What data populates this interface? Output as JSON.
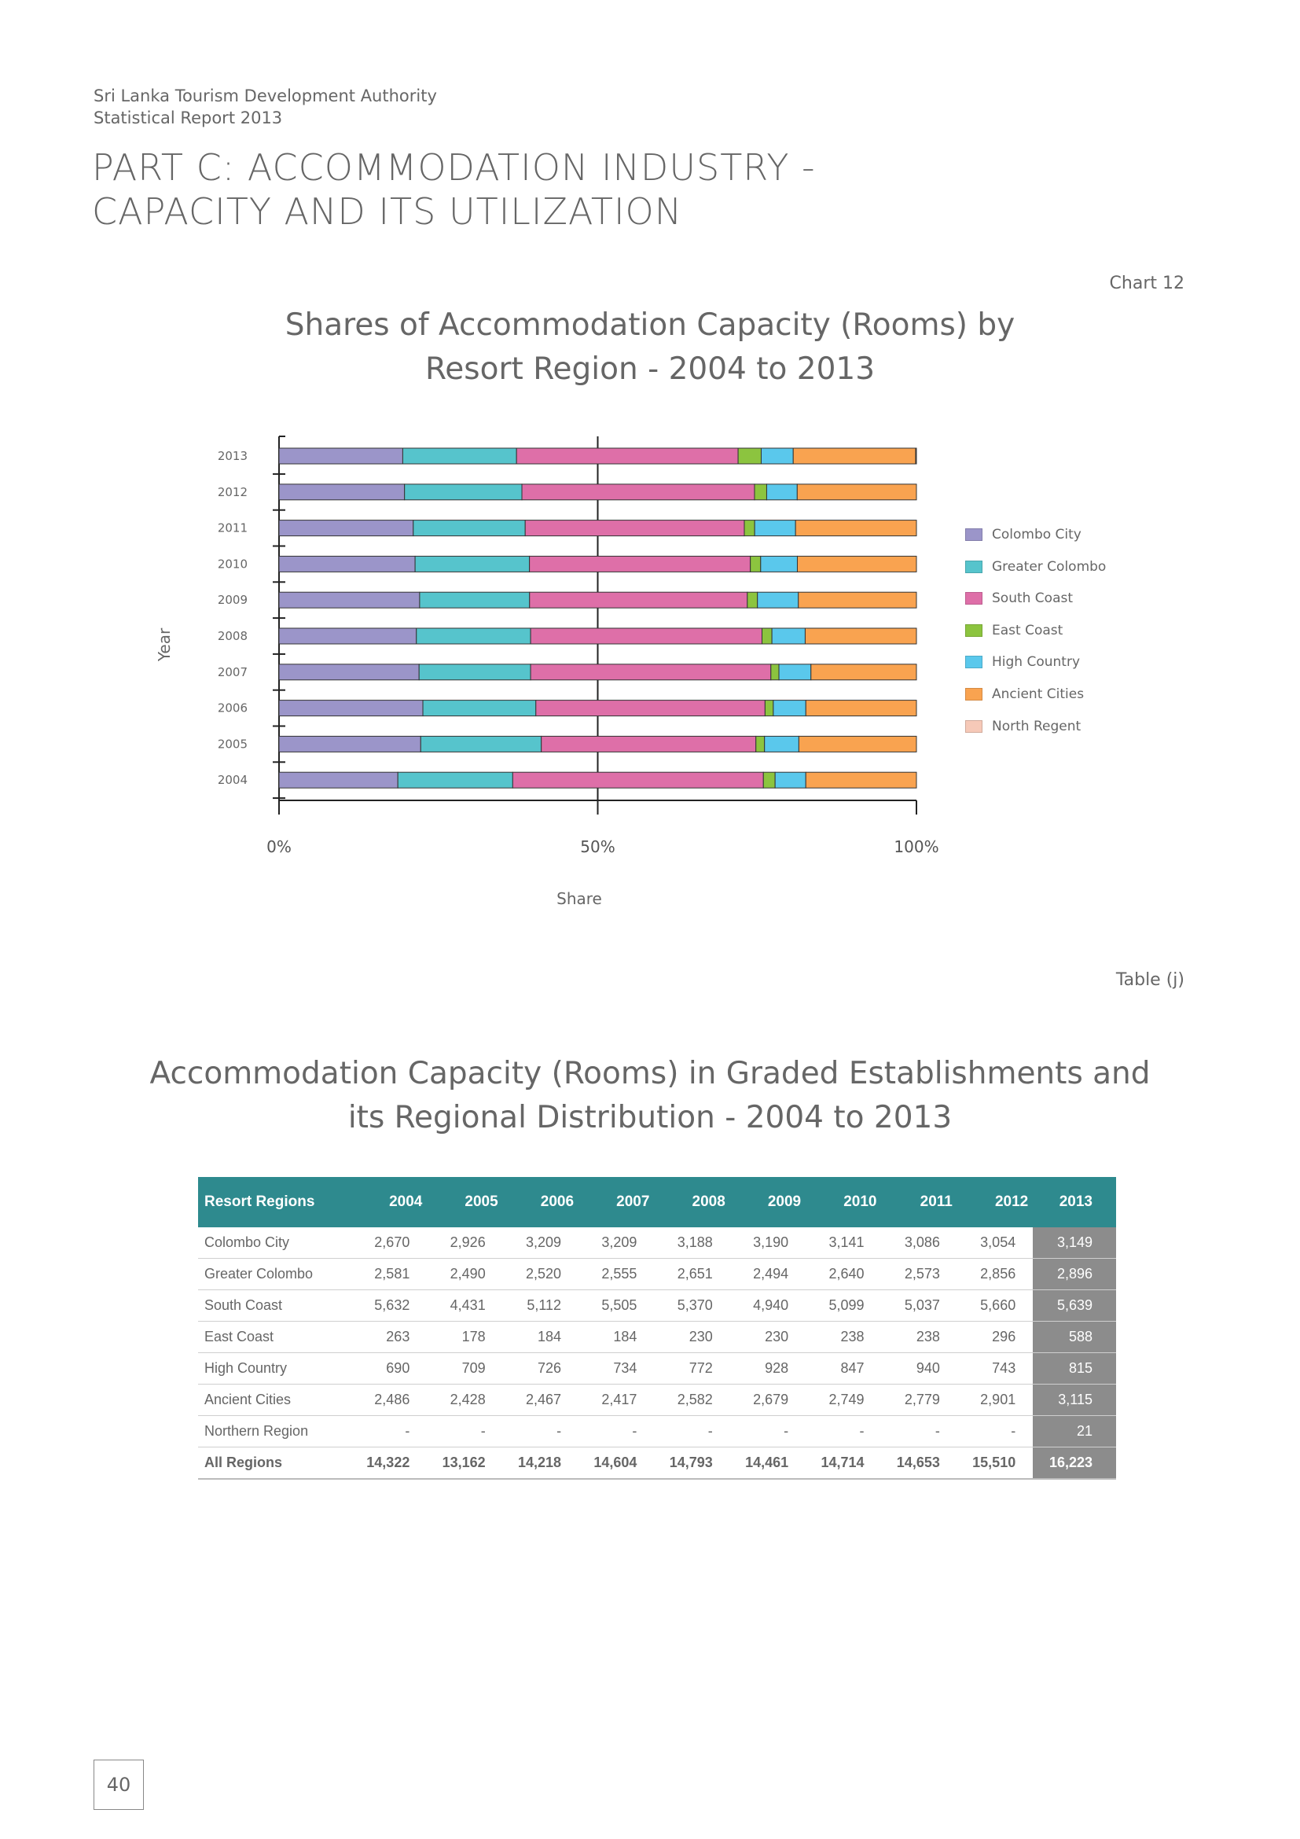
{
  "header": {
    "org": "Sri Lanka Tourism Development Authority",
    "report": "Statistical Report 2013"
  },
  "part_title": {
    "line1": "PART C: ACCOMMODATION INDUSTRY -",
    "line2": "CAPACITY AND ITS UTILIZATION"
  },
  "chart_label": "Chart 12",
  "chart_title": {
    "line1": "Shares of Accommodation Capacity (Rooms) by",
    "line2": "Resort Region - 2004 to 2013"
  },
  "colors": {
    "Colombo City": "#9b95c9",
    "Greater Colombo": "#56c4cc",
    "South Coast": "#de6fa8",
    "East Coast": "#8cc43f",
    "High Country": "#5ac8ec",
    "Ancient Cities": "#f9a350",
    "North Regent": "#f6c9b8",
    "table_header": "#2e8a8e",
    "highlight_column": "#8c8c8c"
  },
  "chart_data": {
    "type": "bar",
    "orientation": "horizontal",
    "stacked": "percent",
    "categories": [
      "2013",
      "2012",
      "2011",
      "2010",
      "2009",
      "2008",
      "2007",
      "2006",
      "2005",
      "2004"
    ],
    "series": [
      {
        "name": "Colombo City",
        "values": [
          3149,
          3054,
          3086,
          3141,
          3190,
          3188,
          3209,
          3209,
          2926,
          2670
        ]
      },
      {
        "name": "Greater Colombo",
        "values": [
          2896,
          2856,
          2573,
          2640,
          2494,
          2651,
          2555,
          2520,
          2490,
          2581
        ]
      },
      {
        "name": "South Coast",
        "values": [
          5639,
          5660,
          5037,
          5099,
          4940,
          5370,
          5505,
          5112,
          4431,
          5632
        ]
      },
      {
        "name": "East Coast",
        "values": [
          588,
          296,
          238,
          238,
          230,
          230,
          184,
          184,
          178,
          263
        ]
      },
      {
        "name": "High Country",
        "values": [
          815,
          743,
          940,
          847,
          928,
          772,
          734,
          726,
          709,
          690
        ]
      },
      {
        "name": "Ancient Cities",
        "values": [
          3115,
          2901,
          2779,
          2749,
          2679,
          2582,
          2417,
          2467,
          2428,
          2486
        ]
      },
      {
        "name": "North Regent",
        "values": [
          21,
          0,
          0,
          0,
          0,
          0,
          0,
          0,
          0,
          0
        ]
      }
    ],
    "xticks": [
      "0%",
      "50%",
      "100%"
    ],
    "xlabel": "Share",
    "ylabel": "Year",
    "xlim": [
      0,
      100
    ],
    "legend_position": "right"
  },
  "table_label": "Table (j)",
  "table_title": {
    "line1": "Accommodation Capacity (Rooms) in Graded Establishments and",
    "line2": "its Regional Distribution - 2004 to 2013"
  },
  "table": {
    "headers": [
      "Resort Regions",
      "2004",
      "2005",
      "2006",
      "2007",
      "2008",
      "2009",
      "2010",
      "2011",
      "2012",
      "2013"
    ],
    "rows": [
      [
        "Colombo City",
        "2,670",
        "2,926",
        "3,209",
        "3,209",
        "3,188",
        "3,190",
        "3,141",
        "3,086",
        "3,054",
        "3,149"
      ],
      [
        "Greater Colombo",
        "2,581",
        "2,490",
        "2,520",
        "2,555",
        "2,651",
        "2,494",
        "2,640",
        "2,573",
        "2,856",
        "2,896"
      ],
      [
        "South Coast",
        "5,632",
        "4,431",
        "5,112",
        "5,505",
        "5,370",
        "4,940",
        "5,099",
        "5,037",
        "5,660",
        "5,639"
      ],
      [
        "East Coast",
        "263",
        "178",
        "184",
        "184",
        "230",
        "230",
        "238",
        "238",
        "296",
        "588"
      ],
      [
        "High Country",
        "690",
        "709",
        "726",
        "734",
        "772",
        "928",
        "847",
        "940",
        "743",
        "815"
      ],
      [
        "Ancient Cities",
        "2,486",
        "2,428",
        "2,467",
        "2,417",
        "2,582",
        "2,679",
        "2,749",
        "2,779",
        "2,901",
        "3,115"
      ],
      [
        "Northern Region",
        "-",
        "-",
        "-",
        "-",
        "-",
        "-",
        "-",
        "-",
        "-",
        "21"
      ],
      [
        "All Regions",
        "14,322",
        "13,162",
        "14,218",
        "14,604",
        "14,793",
        "14,461",
        "14,714",
        "14,653",
        "15,510",
        "16,223"
      ]
    ]
  },
  "page_number": "40"
}
